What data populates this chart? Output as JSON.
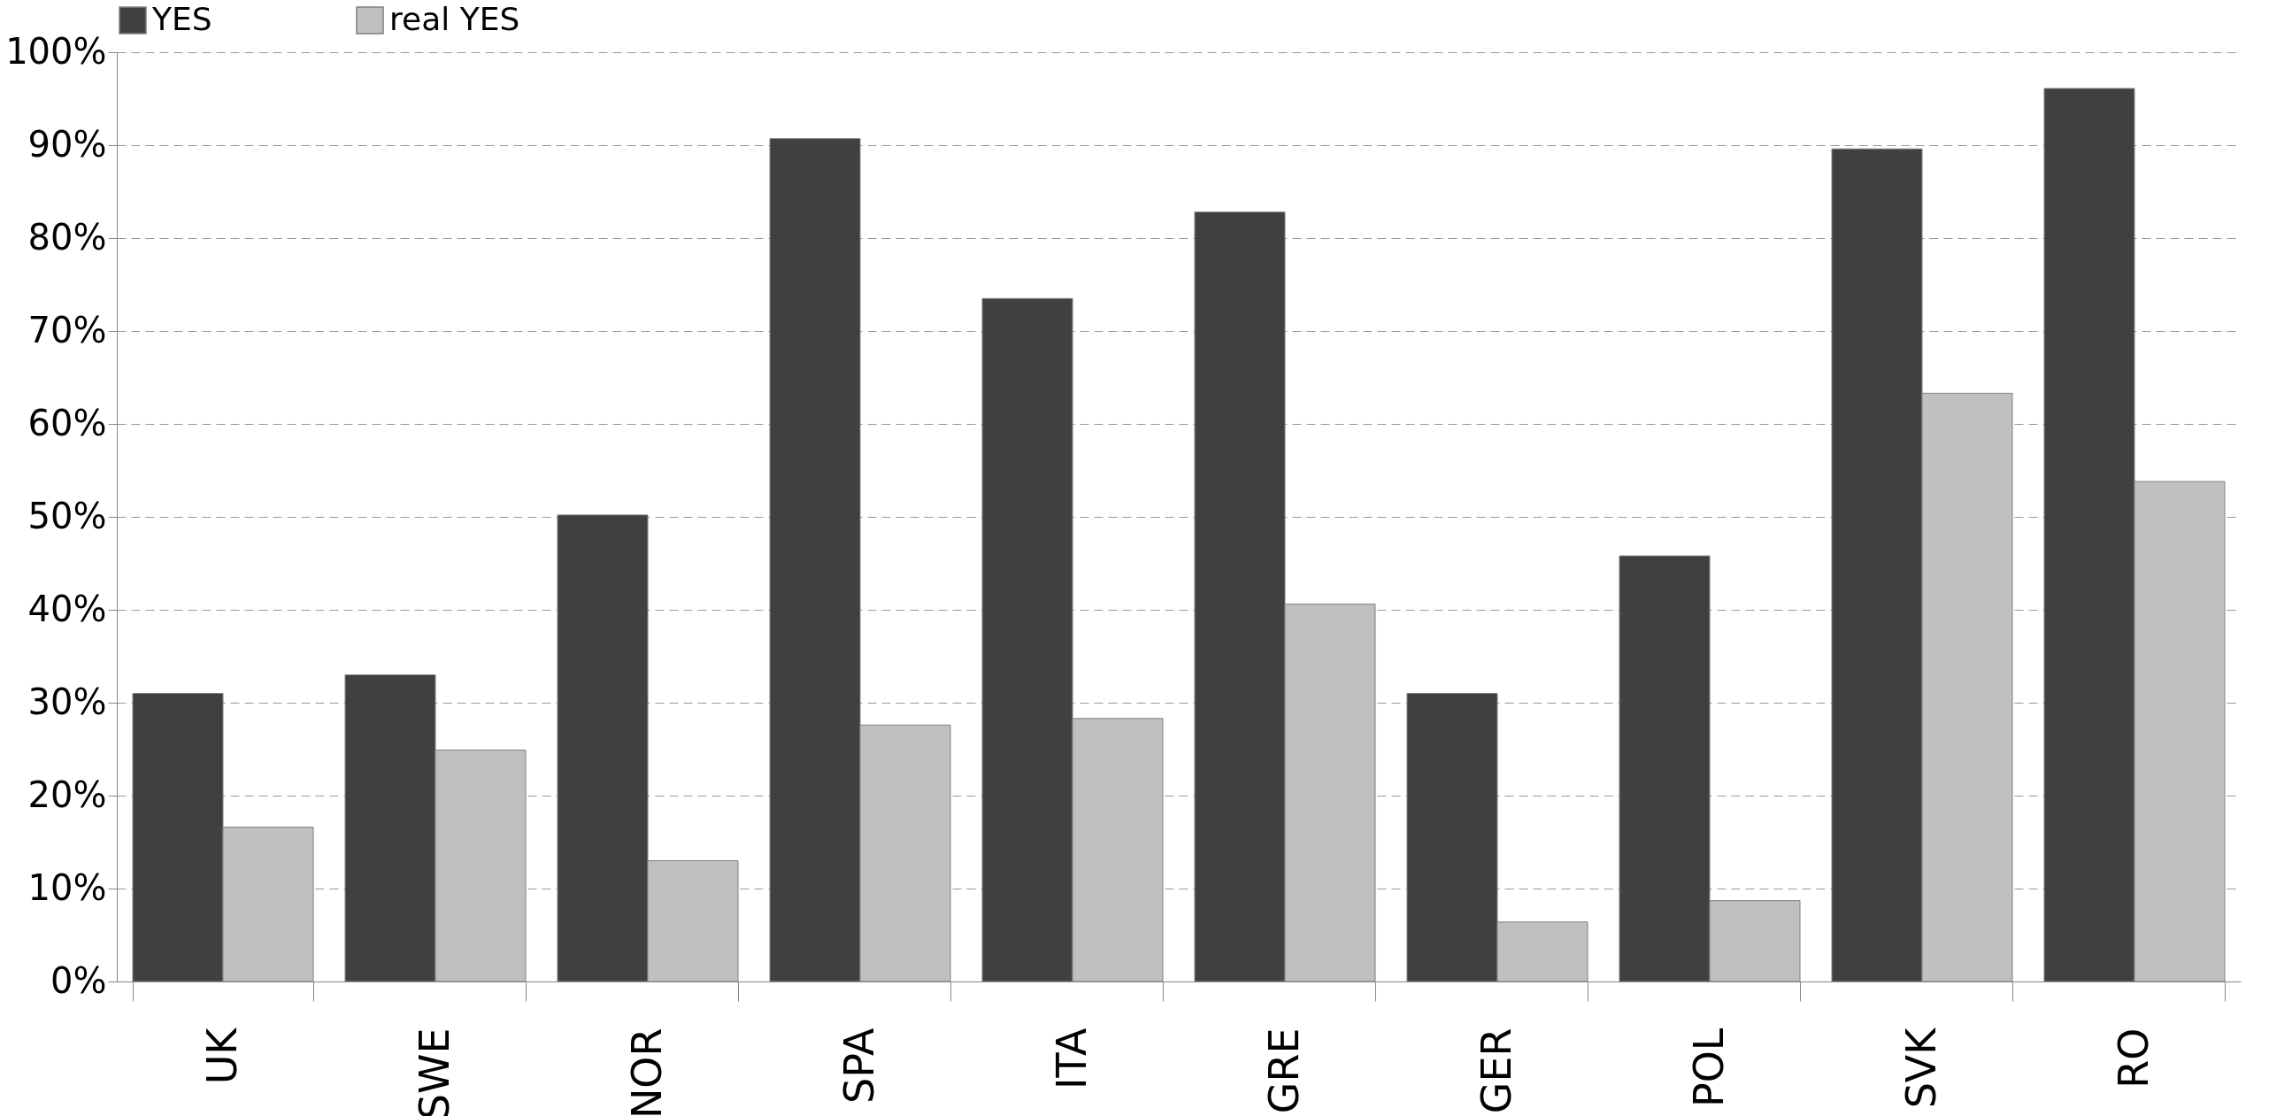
{
  "chart_data": {
    "type": "bar",
    "categories": [
      "UK",
      "SWE",
      "NOR",
      "SPA",
      "ITA",
      "GRE",
      "GER",
      "POL",
      "SVK",
      "RO"
    ],
    "series": [
      {
        "name": "YES",
        "color": "#404040",
        "values": [
          31.0,
          33.0,
          50.2,
          90.7,
          73.5,
          82.8,
          31.0,
          45.8,
          89.6,
          96.1
        ]
      },
      {
        "name": "real YES",
        "color": "#c0c0c0",
        "values": [
          16.6,
          24.9,
          13.0,
          27.6,
          28.3,
          40.6,
          6.4,
          8.7,
          63.3,
          53.8
        ]
      }
    ],
    "ylim": [
      0,
      100
    ],
    "yticks": [
      {
        "value": 0,
        "label": "0%"
      },
      {
        "value": 10,
        "label": "10%"
      },
      {
        "value": 20,
        "label": "20%"
      },
      {
        "value": 30,
        "label": "30%"
      },
      {
        "value": 40,
        "label": "40%"
      },
      {
        "value": 50,
        "label": "50%"
      },
      {
        "value": 60,
        "label": "60%"
      },
      {
        "value": 70,
        "label": "70%"
      },
      {
        "value": 80,
        "label": "80%"
      },
      {
        "value": 90,
        "label": "90%"
      },
      {
        "value": 100,
        "label": "100%"
      }
    ],
    "grid": "y",
    "legend": "top"
  }
}
